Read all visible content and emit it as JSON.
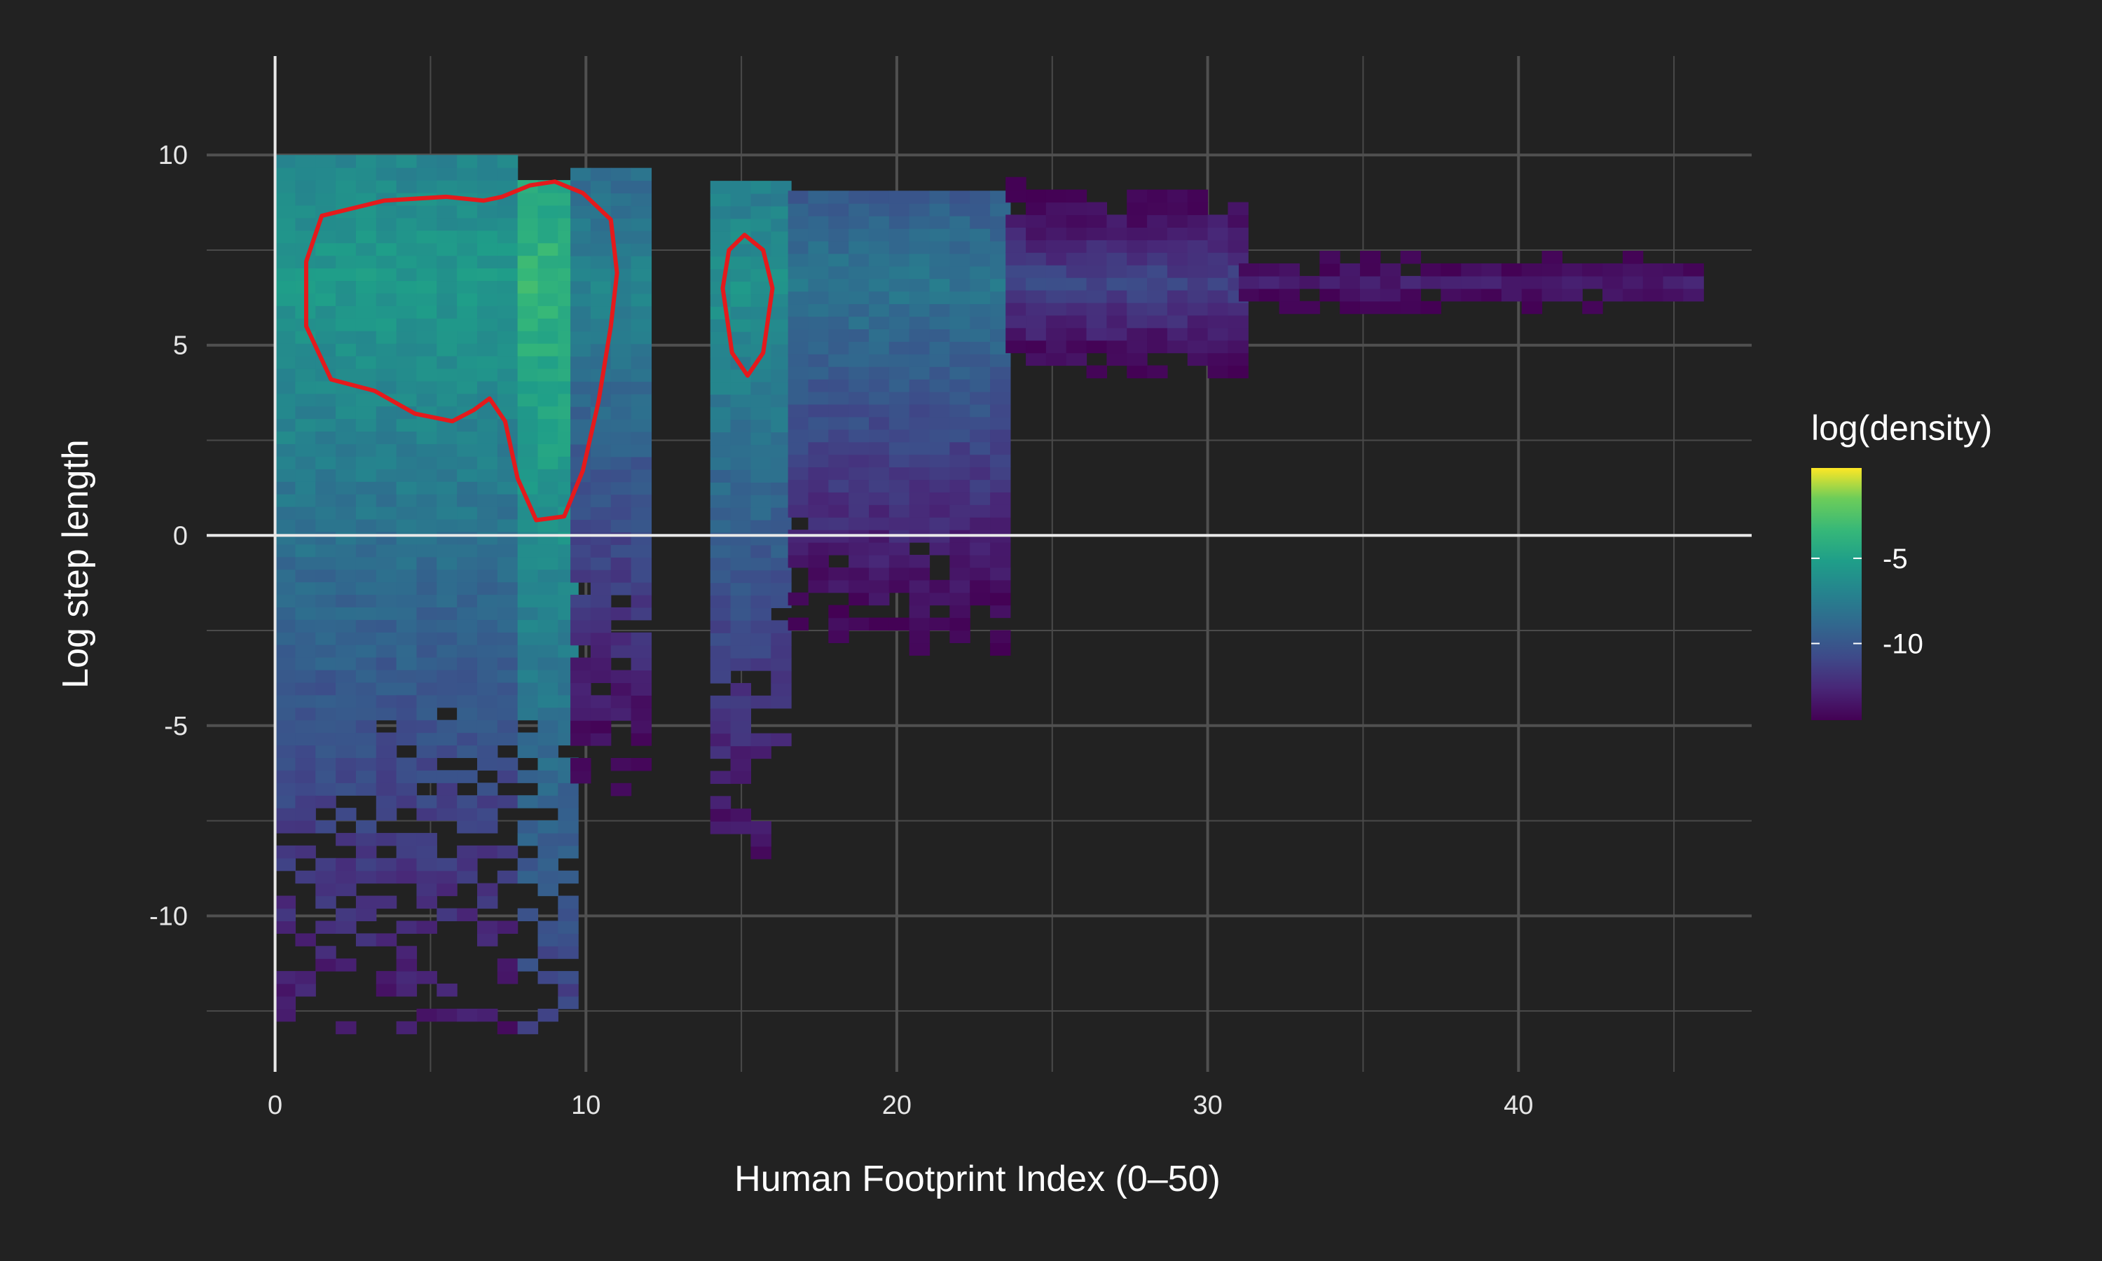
{
  "chart_data": {
    "type": "heatmap",
    "xlabel": "Human Footprint Index (0–50)",
    "ylabel": "Log step length",
    "xlim": [
      -2.2,
      47.5
    ],
    "ylim": [
      -14.1,
      12.6
    ],
    "x_ticks": [
      0,
      10,
      20,
      30,
      40
    ],
    "y_ticks": [
      -10,
      -5,
      0,
      5,
      10
    ],
    "x_tick_labels": [
      "0",
      "10",
      "20",
      "30",
      "40"
    ],
    "y_tick_labels": [
      "-10",
      "-5",
      "0",
      "5",
      "10"
    ],
    "bin_size_x": 0.65,
    "bin_size_y": 0.33,
    "zero_lines": true,
    "grid": true,
    "colorscale": "viridis",
    "background_color": "#222222",
    "grid_color": "#4a4a4a",
    "zero_line_color": "#e8e8e8",
    "contour_color": "#e41a1c",
    "legend": {
      "title": "log(density)",
      "ticks": [
        -5,
        -10
      ],
      "tick_labels": [
        "-5",
        "-10"
      ],
      "range": [
        -14.5,
        0.3
      ],
      "position": "right"
    },
    "density_bands": [
      {
        "x_range": [
          0,
          7.8
        ],
        "y_range": [
          -13.1,
          10
        ],
        "log_density_peak": -5.5
      },
      {
        "x_range": [
          7.8,
          9.5
        ],
        "y_range": [
          -13.1,
          9.3
        ],
        "log_density_peak": -3.5
      },
      {
        "x_range": [
          9.5,
          12
        ],
        "y_range": [
          -7.5,
          9.5
        ],
        "log_density_peak": -7.0
      },
      {
        "x_range": [
          14,
          16.5
        ],
        "y_range": [
          -8.5,
          9.3
        ],
        "log_density_peak": -6.0
      },
      {
        "x_range": [
          16.5,
          23.5
        ],
        "y_range": [
          -4.8,
          9.0
        ],
        "log_density_peak": -8.0
      },
      {
        "x_range": [
          23.5,
          31
        ],
        "y_range": [
          1.5,
          9.3
        ],
        "log_density_peak": -11.0
      },
      {
        "x_range": [
          31,
          45.5
        ],
        "y_range": [
          5.5,
          9.5
        ],
        "log_density_peak": -13.0
      }
    ],
    "contours": [
      {
        "name": "contour-left",
        "points": [
          [
            1.5,
            8.4
          ],
          [
            3.5,
            8.8
          ],
          [
            5.5,
            8.9
          ],
          [
            6.7,
            8.8
          ],
          [
            7.3,
            8.9
          ],
          [
            8.2,
            9.2
          ],
          [
            9,
            9.3
          ],
          [
            9.9,
            9.0
          ],
          [
            10.8,
            8.3
          ],
          [
            11,
            6.9
          ],
          [
            10.8,
            5.5
          ],
          [
            10.4,
            3.5
          ],
          [
            9.9,
            1.7
          ],
          [
            9.3,
            0.5
          ],
          [
            8.4,
            0.4
          ],
          [
            7.8,
            1.5
          ],
          [
            7.4,
            3.0
          ],
          [
            6.9,
            3.6
          ],
          [
            6.4,
            3.3
          ],
          [
            5.7,
            3.0
          ],
          [
            4.5,
            3.2
          ],
          [
            3.2,
            3.8
          ],
          [
            1.8,
            4.1
          ],
          [
            1.0,
            5.5
          ],
          [
            1.0,
            7.2
          ]
        ]
      },
      {
        "name": "contour-right",
        "points": [
          [
            14.6,
            7.5
          ],
          [
            15.1,
            7.9
          ],
          [
            15.7,
            7.5
          ],
          [
            16.0,
            6.5
          ],
          [
            15.7,
            4.8
          ],
          [
            15.2,
            4.2
          ],
          [
            14.7,
            4.8
          ],
          [
            14.4,
            6.5
          ]
        ]
      }
    ]
  }
}
